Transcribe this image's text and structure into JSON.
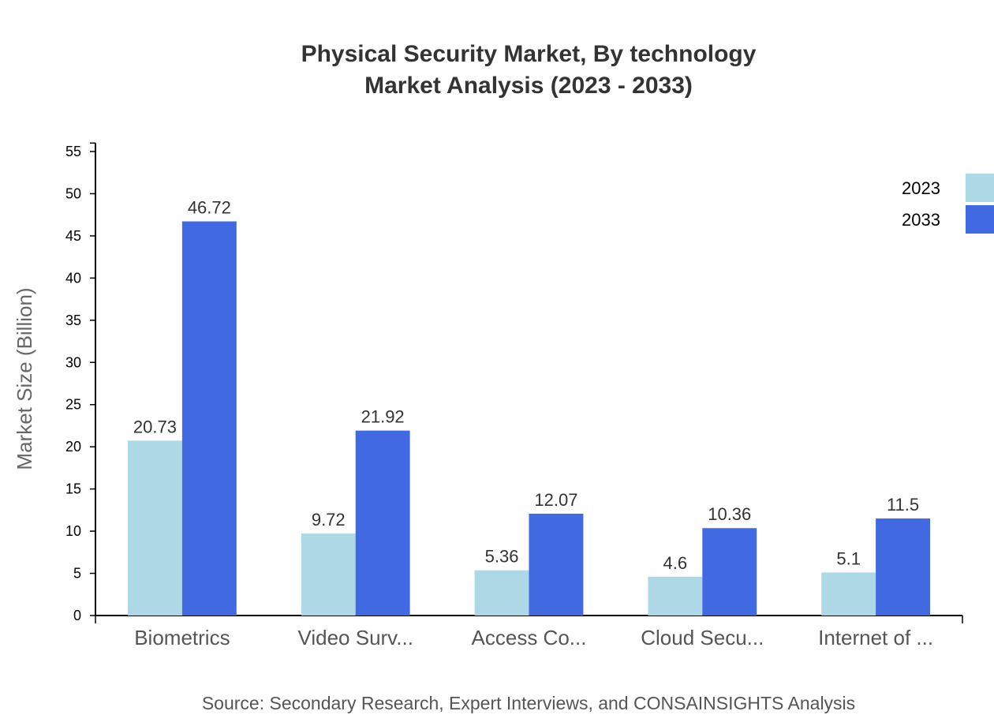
{
  "chart_data": {
    "type": "bar",
    "title": "Physical Security Market, By technology",
    "subtitle": "Market Analysis (2023 - 2033)",
    "xlabel": "",
    "ylabel": "Market Size (Billion)",
    "ylim": [
      0,
      56
    ],
    "yticks": [
      0,
      5,
      10,
      15,
      20,
      25,
      30,
      35,
      40,
      45,
      50,
      55
    ],
    "categories": [
      "Biometrics",
      "Video Surv...",
      "Access Co...",
      "Cloud Secu...",
      "Internet of ..."
    ],
    "series": [
      {
        "name": "2023",
        "color": "#add8e6",
        "values": [
          20.73,
          9.72,
          5.36,
          4.6,
          5.1
        ]
      },
      {
        "name": "2033",
        "color": "#4169e1",
        "values": [
          46.72,
          21.92,
          12.07,
          10.36,
          11.5
        ]
      }
    ],
    "grid": false,
    "legend": "top-right",
    "source": "Source: Secondary Research, Expert Interviews, and CONSAINSIGHTS Analysis"
  }
}
